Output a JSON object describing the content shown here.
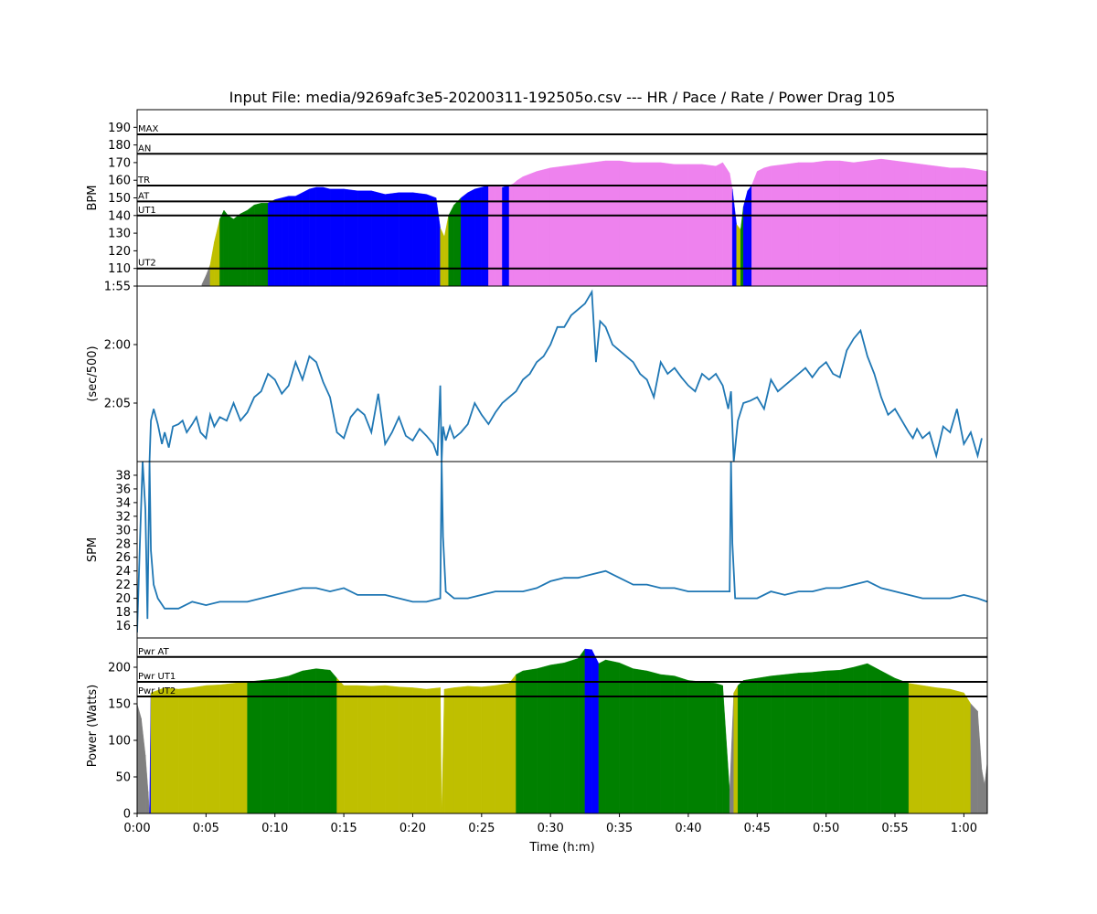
{
  "title": "Input File:  media/9269afc3e5-20200311-192505o.csv --- HR / Pace / Rate / Power Drag 105",
  "colors": {
    "gray": "#808080",
    "yellow": "#bfbf00",
    "green": "#008000",
    "blue": "#0000ff",
    "violet": "#ee82ee",
    "line": "#1f77b4"
  },
  "chart_data": [
    {
      "type": "area",
      "name": "hr",
      "ylabel": "BPM",
      "ylim": [
        100,
        200
      ],
      "xlim": [
        0,
        61.7
      ],
      "yticks": [
        110,
        120,
        130,
        140,
        150,
        160,
        170,
        180,
        190
      ],
      "ytick_labels": [
        "110",
        "120",
        "130",
        "140",
        "150",
        "160",
        "170",
        "180",
        "190"
      ],
      "reference_lines": [
        {
          "label": "MAX",
          "value": 186
        },
        {
          "label": "AN",
          "value": 175
        },
        {
          "label": "TR",
          "value": 157
        },
        {
          "label": "AT",
          "value": 148
        },
        {
          "label": "UT1",
          "value": 140
        },
        {
          "label": "UT2",
          "value": 110
        }
      ],
      "x": [
        4.7,
        5.0,
        5.3,
        5.6,
        6.0,
        6.3,
        6.6,
        7.0,
        7.5,
        8.0,
        8.5,
        9.0,
        9.5,
        10.0,
        10.5,
        11.0,
        11.5,
        12.0,
        12.5,
        13.0,
        13.5,
        14.0,
        15.0,
        16.0,
        17.0,
        18.0,
        19.0,
        20.0,
        21.0,
        21.7,
        22.0,
        22.3,
        22.6,
        23.0,
        23.5,
        24.0,
        24.5,
        25.0,
        25.5,
        26.0,
        26.5,
        27.0,
        27.3,
        27.6,
        28.0,
        29.0,
        30.0,
        31.0,
        32.0,
        33.0,
        34.0,
        35.0,
        36.0,
        37.0,
        38.0,
        39.0,
        40.0,
        41.0,
        42.0,
        42.5,
        43.0,
        43.2,
        43.5,
        43.8,
        44.0,
        44.3,
        44.6,
        45.0,
        45.5,
        46.0,
        47.0,
        48.0,
        49.0,
        50.0,
        51.0,
        52.0,
        53.0,
        54.0,
        55.0,
        56.0,
        57.0,
        58.0,
        59.0,
        60.0,
        61.0,
        61.7
      ],
      "values": [
        101,
        106,
        112,
        125,
        138,
        143,
        140,
        138,
        141,
        143,
        146,
        147,
        147,
        149,
        150,
        151,
        151,
        153,
        155,
        156,
        156,
        155,
        155,
        154,
        154,
        152,
        153,
        153,
        152,
        150,
        133,
        128,
        140,
        146,
        150,
        153,
        155,
        156,
        157,
        157,
        156,
        157,
        158,
        160,
        162,
        165,
        167,
        168,
        169,
        170,
        171,
        171,
        170,
        170,
        170,
        169,
        169,
        169,
        168,
        170,
        164,
        155,
        135,
        132,
        145,
        154,
        157,
        165,
        167,
        168,
        169,
        170,
        170,
        171,
        171,
        170,
        171,
        172,
        171,
        170,
        169,
        168,
        167,
        167,
        166,
        165
      ],
      "zone_colors": [
        "gray",
        "gray",
        "yellow",
        "yellow",
        "green",
        "green",
        "green",
        "green",
        "green",
        "green",
        "green",
        "green",
        "blue",
        "blue",
        "blue",
        "blue",
        "blue",
        "blue",
        "blue",
        "blue",
        "blue",
        "blue",
        "blue",
        "blue",
        "blue",
        "blue",
        "blue",
        "blue",
        "blue",
        "blue",
        "yellow",
        "yellow",
        "green",
        "green",
        "blue",
        "blue",
        "blue",
        "blue",
        "violet",
        "violet",
        "blue",
        "violet",
        "violet",
        "violet",
        "violet",
        "violet",
        "violet",
        "violet",
        "violet",
        "violet",
        "violet",
        "violet",
        "violet",
        "violet",
        "violet",
        "violet",
        "violet",
        "violet",
        "violet",
        "violet",
        "violet",
        "blue",
        "yellow",
        "green",
        "blue",
        "blue",
        "violet",
        "violet",
        "violet",
        "violet",
        "violet",
        "violet",
        "violet",
        "violet",
        "violet",
        "violet",
        "violet",
        "violet",
        "violet",
        "violet",
        "violet",
        "violet",
        "violet",
        "violet",
        "violet",
        "violet"
      ]
    },
    {
      "type": "line",
      "name": "pace",
      "ylabel": "(sec/500)",
      "ylim": [
        130,
        115
      ],
      "xlim": [
        0,
        61.7
      ],
      "yticks": [
        115,
        120,
        125
      ],
      "ytick_labels": [
        "1:55",
        "2:00",
        "2:05"
      ],
      "x": [
        0.9,
        1.0,
        1.2,
        1.5,
        1.8,
        2.0,
        2.3,
        2.6,
        3.0,
        3.3,
        3.6,
        4.0,
        4.3,
        4.6,
        5.0,
        5.3,
        5.6,
        6.0,
        6.5,
        7.0,
        7.5,
        8.0,
        8.5,
        9.0,
        9.5,
        10.0,
        10.5,
        11.0,
        11.5,
        12.0,
        12.5,
        13.0,
        13.5,
        14.0,
        14.5,
        15.0,
        15.5,
        16.0,
        16.5,
        17.0,
        17.5,
        18.0,
        18.5,
        19.0,
        19.5,
        20.0,
        20.5,
        21.0,
        21.5,
        21.8,
        22.0,
        22.1,
        22.2,
        22.4,
        22.7,
        23.0,
        23.5,
        24.0,
        24.5,
        25.0,
        25.5,
        26.0,
        26.5,
        27.0,
        27.5,
        28.0,
        28.5,
        29.0,
        29.5,
        30.0,
        30.5,
        31.0,
        31.5,
        32.0,
        32.5,
        33.0,
        33.3,
        33.6,
        34.0,
        34.5,
        35.0,
        35.5,
        36.0,
        36.5,
        37.0,
        37.5,
        38.0,
        38.5,
        39.0,
        39.5,
        40.0,
        40.5,
        41.0,
        41.5,
        42.0,
        42.5,
        42.9,
        43.1,
        43.3,
        43.6,
        44.0,
        44.5,
        45.0,
        45.5,
        46.0,
        46.5,
        47.0,
        47.5,
        48.0,
        48.5,
        49.0,
        49.5,
        50.0,
        50.5,
        51.0,
        51.5,
        52.0,
        52.5,
        53.0,
        53.5,
        54.0,
        54.5,
        55.0,
        55.5,
        56.0,
        56.3,
        56.6,
        57.0,
        57.5,
        58.0,
        58.5,
        59.0,
        59.5,
        60.0,
        60.5,
        61.0,
        61.3
      ],
      "values": [
        130.0,
        126.5,
        125.5,
        126.8,
        128.5,
        127.5,
        128.8,
        127.0,
        126.8,
        126.5,
        127.5,
        126.8,
        126.2,
        127.5,
        128.0,
        126.0,
        127.0,
        126.2,
        126.5,
        125.0,
        126.5,
        125.8,
        124.5,
        124.0,
        122.5,
        123.0,
        124.2,
        123.5,
        121.5,
        123.0,
        121.0,
        121.5,
        123.2,
        124.5,
        127.5,
        128.0,
        126.2,
        125.5,
        126.0,
        127.5,
        124.2,
        128.5,
        127.5,
        126.2,
        127.8,
        128.2,
        127.2,
        127.8,
        128.5,
        129.5,
        123.5,
        130.0,
        127.0,
        128.2,
        127.0,
        128.0,
        127.5,
        126.8,
        125.0,
        126.0,
        126.8,
        125.8,
        125.0,
        124.5,
        124.0,
        123.0,
        122.5,
        121.5,
        121.0,
        120.0,
        118.5,
        118.5,
        117.5,
        117.0,
        116.5,
        115.5,
        121.5,
        118.0,
        118.5,
        120.0,
        120.5,
        121.0,
        121.5,
        122.5,
        123.0,
        124.5,
        121.5,
        122.5,
        122.0,
        122.8,
        123.5,
        124.0,
        122.5,
        123.0,
        122.5,
        123.5,
        125.5,
        124.0,
        130.0,
        126.5,
        125.0,
        124.8,
        124.5,
        125.5,
        123.0,
        124.0,
        123.5,
        123.0,
        122.5,
        122.0,
        122.8,
        122.0,
        121.5,
        122.5,
        122.8,
        120.5,
        119.5,
        118.8,
        121.0,
        122.5,
        124.5,
        126.0,
        125.5,
        126.5,
        127.5,
        128.0,
        127.2,
        128.0,
        127.5,
        129.5,
        127.0,
        127.5,
        125.5,
        128.5,
        127.5,
        129.5,
        128.0
      ],
      "color": "line"
    },
    {
      "type": "line",
      "name": "spm",
      "ylabel": "SPM",
      "ylim": [
        14.2,
        40
      ],
      "xlim": [
        0,
        61.7
      ],
      "yticks": [
        16,
        18,
        20,
        22,
        24,
        26,
        28,
        30,
        32,
        34,
        36,
        38
      ],
      "ytick_labels": [
        "16",
        "18",
        "20",
        "22",
        "24",
        "26",
        "28",
        "30",
        "32",
        "34",
        "36",
        "38"
      ],
      "x": [
        0.0,
        0.2,
        0.4,
        0.6,
        0.75,
        0.9,
        1.0,
        1.2,
        1.5,
        2.0,
        3.0,
        4.0,
        5.0,
        6.0,
        7.0,
        8.0,
        9.0,
        10.0,
        11.0,
        12.0,
        13.0,
        14.0,
        15.0,
        16.0,
        17.0,
        18.0,
        19.0,
        20.0,
        21.0,
        22.0,
        22.1,
        22.2,
        22.4,
        23.0,
        24.0,
        25.0,
        26.0,
        27.0,
        28.0,
        29.0,
        30.0,
        31.0,
        32.0,
        33.0,
        34.0,
        35.0,
        36.0,
        37.0,
        38.0,
        39.0,
        40.0,
        41.0,
        42.0,
        43.0,
        43.1,
        43.2,
        43.4,
        44.0,
        45.0,
        46.0,
        47.0,
        48.0,
        49.0,
        50.0,
        51.0,
        52.0,
        53.0,
        54.0,
        55.0,
        56.0,
        57.0,
        58.0,
        59.0,
        60.0,
        61.0,
        61.7
      ],
      "values": [
        15,
        28,
        40,
        33,
        17,
        40,
        27,
        22,
        20,
        18.5,
        18.5,
        19.5,
        19,
        19.5,
        19.5,
        19.5,
        20,
        20.5,
        21,
        21.5,
        21.5,
        21,
        21.5,
        20.5,
        20.5,
        20.5,
        20,
        19.5,
        19.5,
        20,
        40,
        29,
        21,
        20,
        20,
        20.5,
        21,
        21,
        21,
        21.5,
        22.5,
        23,
        23,
        23.5,
        24,
        23,
        22,
        22,
        21.5,
        21.5,
        21,
        21,
        21,
        21,
        40,
        28,
        20,
        20,
        20,
        21,
        20.5,
        21,
        21,
        21.5,
        21.5,
        22,
        22.5,
        21.5,
        21,
        20.5,
        20,
        20,
        20,
        20.5,
        20,
        19.5
      ],
      "color": "line"
    },
    {
      "type": "area",
      "name": "power",
      "ylabel": "Power (Watts)",
      "xlabel": "Time (h:m)",
      "ylim": [
        0,
        240
      ],
      "xlim": [
        0,
        61.7
      ],
      "yticks": [
        0,
        50,
        100,
        150,
        200
      ],
      "ytick_labels": [
        "0",
        "50",
        "100",
        "150",
        "200"
      ],
      "xticks": [
        0,
        5,
        10,
        15,
        20,
        25,
        30,
        35,
        40,
        45,
        50,
        55,
        60
      ],
      "xtick_labels": [
        "0:00",
        "0:05",
        "0:10",
        "0:15",
        "0:20",
        "0:25",
        "0:30",
        "0:35",
        "0:40",
        "0:45",
        "0:50",
        "0:55",
        "1:00"
      ],
      "reference_lines": [
        {
          "label": "Pwr AT",
          "value": 214
        },
        {
          "label": "Pwr UT1",
          "value": 180
        },
        {
          "label": "Pwr UT2",
          "value": 160
        }
      ],
      "x": [
        0.0,
        0.3,
        0.6,
        0.8,
        0.9,
        1.0,
        2.0,
        3.0,
        4.0,
        5.0,
        6.0,
        7.0,
        8.0,
        9.0,
        10.0,
        11.0,
        12.0,
        13.0,
        14.0,
        14.5,
        15.0,
        16.0,
        17.0,
        18.0,
        19.0,
        20.0,
        21.0,
        22.0,
        22.1,
        22.3,
        23.0,
        24.0,
        25.0,
        26.0,
        27.0,
        27.5,
        28.0,
        29.0,
        30.0,
        31.0,
        32.0,
        32.5,
        33.0,
        33.5,
        34.0,
        35.0,
        36.0,
        37.0,
        38.0,
        39.0,
        40.0,
        41.0,
        42.0,
        42.5,
        43.0,
        43.3,
        43.6,
        44.0,
        45.0,
        46.0,
        47.0,
        48.0,
        49.0,
        50.0,
        51.0,
        52.0,
        53.0,
        54.0,
        55.0,
        56.0,
        57.0,
        58.0,
        59.0,
        60.0,
        60.5,
        61.0,
        61.3,
        61.5,
        61.7
      ],
      "values": [
        150,
        130,
        80,
        30,
        0,
        165,
        172,
        170,
        172,
        175,
        176,
        178,
        180,
        182,
        184,
        188,
        195,
        198,
        196,
        185,
        175,
        175,
        174,
        175,
        173,
        172,
        170,
        172,
        0,
        170,
        172,
        174,
        173,
        175,
        178,
        190,
        195,
        198,
        203,
        206,
        212,
        225,
        224,
        205,
        210,
        206,
        198,
        195,
        190,
        188,
        182,
        180,
        178,
        175,
        30,
        165,
        175,
        182,
        185,
        188,
        190,
        192,
        193,
        195,
        196,
        200,
        205,
        195,
        185,
        178,
        175,
        172,
        170,
        165,
        150,
        140,
        60,
        40,
        70
      ],
      "zone_colors": [
        "gray",
        "gray",
        "gray",
        "gray",
        "blue",
        "yellow",
        "yellow",
        "yellow",
        "yellow",
        "yellow",
        "yellow",
        "yellow",
        "green",
        "green",
        "green",
        "green",
        "green",
        "green",
        "green",
        "yellow",
        "yellow",
        "yellow",
        "yellow",
        "yellow",
        "yellow",
        "yellow",
        "yellow",
        "yellow",
        "yellow",
        "yellow",
        "yellow",
        "yellow",
        "yellow",
        "yellow",
        "yellow",
        "green",
        "green",
        "green",
        "green",
        "green",
        "green",
        "blue",
        "blue",
        "green",
        "green",
        "green",
        "green",
        "green",
        "green",
        "green",
        "green",
        "green",
        "green",
        "green",
        "gray",
        "yellow",
        "green",
        "green",
        "green",
        "green",
        "green",
        "green",
        "green",
        "green",
        "green",
        "green",
        "green",
        "green",
        "green",
        "yellow",
        "yellow",
        "yellow",
        "yellow",
        "yellow",
        "gray",
        "gray",
        "gray",
        "gray",
        "gray"
      ]
    }
  ]
}
